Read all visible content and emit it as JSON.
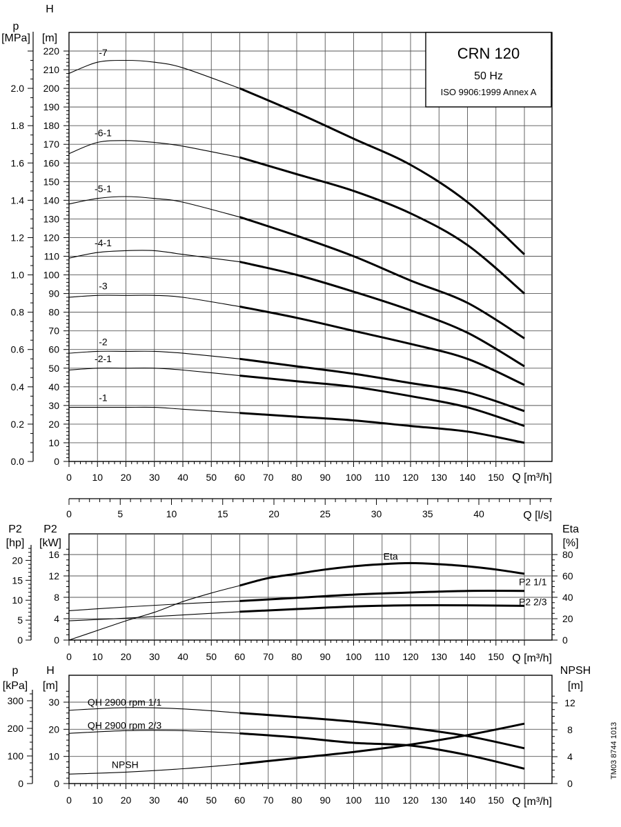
{
  "title_box": {
    "model": "CRN 120",
    "frequency": "50 Hz",
    "standard": "ISO 9906:1999 Annex A"
  },
  "side_code": "TM03 8744 1013",
  "chart_data": [
    {
      "id": "qh",
      "type": "line",
      "xlabel": "Q [m³/h]",
      "xlim": [
        0,
        160
      ],
      "x_ticks": [
        0,
        10,
        20,
        30,
        40,
        50,
        60,
        70,
        80,
        90,
        100,
        110,
        120,
        130,
        140,
        150
      ],
      "y_left_title": [
        "p",
        "[MPa]"
      ],
      "y_left_ticks": [
        "0.0",
        "0.2",
        "0.4",
        "0.6",
        "0.8",
        "1.0",
        "1.2",
        "1.4",
        "1.6",
        "1.8",
        "2.0"
      ],
      "y_left_range": [
        0,
        2.2
      ],
      "ylabel": [
        "H",
        "[m]"
      ],
      "ylim": [
        0,
        220
      ],
      "y_ticks": [
        0,
        10,
        20,
        30,
        40,
        50,
        60,
        70,
        80,
        90,
        100,
        110,
        120,
        130,
        140,
        150,
        160,
        170,
        180,
        190,
        200,
        210,
        220
      ],
      "recommended_range": [
        60,
        160
      ],
      "series": [
        {
          "name": "-7",
          "x": [
            0,
            10,
            20,
            30,
            40,
            60,
            80,
            100,
            120,
            140,
            160
          ],
          "values": [
            208,
            214,
            215,
            214,
            211,
            200,
            187,
            173,
            159,
            139,
            111
          ]
        },
        {
          "name": "-6-1",
          "x": [
            0,
            10,
            20,
            30,
            40,
            60,
            80,
            100,
            120,
            140,
            160
          ],
          "values": [
            165,
            171,
            172,
            171,
            169,
            163,
            154,
            145,
            133,
            116,
            90
          ]
        },
        {
          "name": "-5-1",
          "x": [
            0,
            10,
            20,
            30,
            40,
            60,
            80,
            100,
            120,
            140,
            160
          ],
          "values": [
            138,
            141,
            142,
            141,
            139,
            131,
            121,
            110,
            97,
            85,
            66
          ]
        },
        {
          "name": "-4-1",
          "x": [
            0,
            10,
            20,
            30,
            40,
            60,
            80,
            100,
            120,
            140,
            160
          ],
          "values": [
            109,
            112,
            113,
            113,
            111,
            107,
            100,
            91,
            81,
            69,
            51
          ]
        },
        {
          "name": "-3",
          "x": [
            0,
            10,
            20,
            30,
            40,
            60,
            80,
            100,
            120,
            140,
            160
          ],
          "values": [
            88,
            89,
            89,
            89,
            88,
            83,
            77,
            70,
            63,
            55,
            41
          ]
        },
        {
          "name": "-2",
          "x": [
            0,
            10,
            20,
            30,
            40,
            60,
            80,
            100,
            120,
            140,
            160
          ],
          "values": [
            58,
            59,
            59,
            59,
            58,
            55,
            51,
            47,
            42,
            37,
            27
          ]
        },
        {
          "name": "-2-1",
          "x": [
            0,
            10,
            20,
            30,
            40,
            60,
            80,
            100,
            120,
            140,
            160
          ],
          "values": [
            49,
            50,
            50,
            50,
            49,
            46,
            43,
            40,
            35,
            29,
            19
          ]
        },
        {
          "name": "-1",
          "x": [
            0,
            10,
            20,
            30,
            40,
            60,
            80,
            100,
            120,
            140,
            160
          ],
          "values": [
            29,
            29,
            29,
            29,
            28,
            26,
            24,
            22,
            19,
            16,
            10
          ]
        }
      ]
    },
    {
      "id": "ls-axis",
      "type": "line",
      "xlabel": "Q [l/s]",
      "xlim": [
        0,
        44.44
      ],
      "x_ticks": [
        0,
        5,
        10,
        15,
        20,
        25,
        30,
        35,
        40
      ]
    },
    {
      "id": "power",
      "type": "line",
      "xlabel": "Q [m³/h]",
      "xlim": [
        0,
        160
      ],
      "x_ticks": [
        0,
        10,
        20,
        30,
        40,
        50,
        60,
        70,
        80,
        90,
        100,
        110,
        120,
        130,
        140,
        150
      ],
      "y_hp_title": [
        "P2",
        "[hp]"
      ],
      "y_hp_ticks": [
        0,
        5,
        10,
        15,
        20
      ],
      "ylabel": [
        "P2",
        "[kW]"
      ],
      "ylim": [
        0,
        16
      ],
      "y_ticks": [
        0,
        4,
        8,
        12,
        16
      ],
      "y_right_title": [
        "Eta",
        "[%]"
      ],
      "y_right_range": [
        0,
        80
      ],
      "y_right_ticks": [
        0,
        20,
        40,
        60,
        80
      ],
      "recommended_range": [
        60,
        160
      ],
      "series": [
        {
          "name": "Eta",
          "axis": "right",
          "x": [
            0,
            10,
            20,
            30,
            40,
            50,
            60,
            70,
            80,
            90,
            100,
            110,
            120,
            130,
            140,
            150,
            160
          ],
          "values": [
            0,
            9,
            18,
            26,
            36,
            44,
            51,
            58,
            62,
            66,
            69,
            71,
            72,
            71,
            69,
            66,
            62
          ]
        },
        {
          "name": "P2 1/1",
          "axis": "left",
          "x": [
            0,
            20,
            40,
            60,
            80,
            100,
            120,
            140,
            160
          ],
          "values": [
            5.5,
            6.2,
            6.8,
            7.3,
            7.9,
            8.5,
            8.9,
            9.2,
            9.2
          ]
        },
        {
          "name": "P2 2/3",
          "axis": "left",
          "x": [
            0,
            20,
            40,
            60,
            80,
            100,
            120,
            140,
            160
          ],
          "values": [
            3.6,
            4.1,
            4.7,
            5.3,
            5.8,
            6.3,
            6.5,
            6.5,
            6.4
          ]
        }
      ]
    },
    {
      "id": "npsh",
      "type": "line",
      "xlabel": "Q [m³/h]",
      "xlim": [
        0,
        160
      ],
      "x_ticks": [
        0,
        10,
        20,
        30,
        40,
        50,
        60,
        70,
        80,
        90,
        100,
        110,
        120,
        130,
        140,
        150
      ],
      "y_p_title": [
        "p",
        "[kPa]"
      ],
      "y_p_ticks": [
        0,
        100,
        200,
        300
      ],
      "ylabel": [
        "H",
        "[m]"
      ],
      "ylim": [
        0,
        34
      ],
      "y_ticks": [
        0,
        10,
        20,
        30
      ],
      "y_right_title": [
        "NPSH",
        "[m]"
      ],
      "y_right_range": [
        0,
        13.6
      ],
      "y_right_ticks": [
        0,
        4,
        8,
        12
      ],
      "recommended_range": [
        60,
        160
      ],
      "series": [
        {
          "name": "QH 2900 rpm 1/1",
          "axis": "left",
          "x": [
            0,
            20,
            40,
            60,
            80,
            100,
            120,
            140,
            160
          ],
          "values": [
            27,
            28,
            27.5,
            26,
            24.5,
            22.8,
            20.5,
            17.5,
            13
          ]
        },
        {
          "name": "QH 2900 rpm 2/3",
          "axis": "left",
          "x": [
            0,
            20,
            40,
            60,
            80,
            100,
            120,
            140,
            160
          ],
          "values": [
            18.5,
            19.5,
            19.5,
            18.5,
            17,
            15,
            14,
            10.5,
            5.5
          ]
        },
        {
          "name": "NPSH",
          "axis": "right",
          "x": [
            0,
            20,
            40,
            60,
            80,
            100,
            120,
            140,
            160
          ],
          "values": [
            1.4,
            1.7,
            2.2,
            2.9,
            3.8,
            4.7,
            5.8,
            7.2,
            8.9
          ]
        }
      ]
    }
  ]
}
